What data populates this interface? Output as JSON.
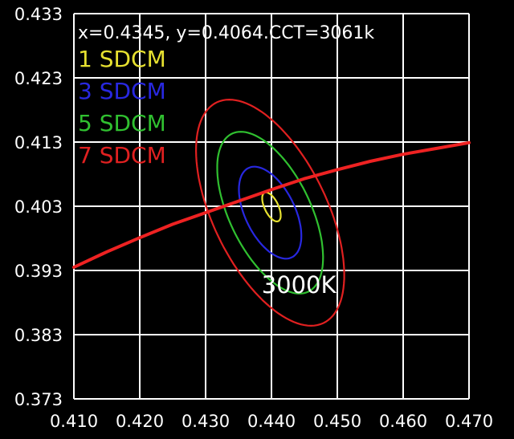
{
  "chart_data": {
    "type": "line",
    "title": "",
    "xlabel": "",
    "ylabel": "",
    "xlim": [
      0.41,
      0.47
    ],
    "ylim": [
      0.373,
      0.433
    ],
    "x_ticks": [
      "0.410",
      "0.420",
      "0.430",
      "0.440",
      "0.450",
      "0.460",
      "0.470"
    ],
    "y_ticks": [
      "0.433",
      "0.423",
      "0.413",
      "0.403",
      "0.393",
      "0.383",
      "0.373"
    ],
    "x_tick_values": [
      0.41,
      0.42,
      0.43,
      0.44,
      0.45,
      0.46,
      0.47
    ],
    "y_tick_values": [
      0.433,
      0.423,
      0.413,
      0.403,
      0.393,
      0.383,
      0.373
    ],
    "grid": true,
    "background_color": "#000000",
    "grid_color": "#ffffff",
    "readout": "x=0.4345,  y=0.4064.CCT=3061k",
    "annotation": {
      "text": "3000K",
      "x": 0.4385,
      "y": 0.3895
    },
    "legend_position": "top-left",
    "legend": [
      {
        "label": "1 SDCM",
        "color": "#e6e030"
      },
      {
        "label": "3 SDCM",
        "color": "#2828e0"
      },
      {
        "label": "5 SDCM",
        "color": "#30c030"
      },
      {
        "label": "7 SDCM",
        "color": "#e02020"
      }
    ],
    "ellipses": [
      {
        "name": "1 SDCM",
        "color": "#e6e030",
        "center": [
          0.44,
          0.4029
        ],
        "semi_axes": [
          0.00105,
          0.00245
        ],
        "angle_deg": 25
      },
      {
        "name": "3 SDCM",
        "color": "#2828e0",
        "center": [
          0.4398,
          0.402
        ],
        "semi_axes": [
          0.0038,
          0.0077
        ],
        "angle_deg": 25
      },
      {
        "name": "5 SDCM",
        "color": "#30c030",
        "center": [
          0.4398,
          0.402
        ],
        "semi_axes": [
          0.0062,
          0.0136
        ],
        "angle_deg": 25
      },
      {
        "name": "7 SDCM",
        "color": "#e02020",
        "center": [
          0.4398,
          0.402
        ],
        "semi_axes": [
          0.0087,
          0.019
        ],
        "angle_deg": 25
      }
    ],
    "series": [
      {
        "color": "#ee2222",
        "x": [
          0.41,
          0.415,
          0.42,
          0.425,
          0.43,
          0.435,
          0.44,
          0.445,
          0.45,
          0.455,
          0.46,
          0.465,
          0.47
        ],
        "y": [
          0.3935,
          0.3959,
          0.3981,
          0.4002,
          0.402,
          0.4038,
          0.4056,
          0.4073,
          0.4087,
          0.41,
          0.4111,
          0.412,
          0.4129
        ]
      }
    ]
  }
}
